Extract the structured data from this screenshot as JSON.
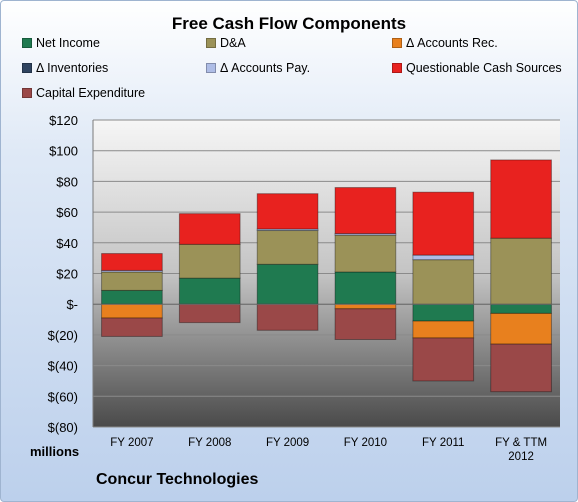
{
  "chart_data": {
    "type": "bar",
    "stacked": true,
    "title": "Free Cash Flow Components",
    "unit_label": "millions",
    "footer": "Concur Technologies",
    "categories": [
      "FY 2007",
      "FY 2008",
      "FY 2009",
      "FY 2010",
      "FY 2011",
      "FY & TTM 2012"
    ],
    "ylim": [
      -80,
      120
    ],
    "yticks": [
      120,
      100,
      80,
      60,
      40,
      20,
      0,
      -20,
      -40,
      -60,
      -80
    ],
    "ytick_labels": [
      "$120",
      "$100",
      "$80",
      "$60",
      "$40",
      "$20",
      "$-",
      "$(20)",
      "$(40)",
      "$(60)",
      "$(80)"
    ],
    "legend_position": "top",
    "series": [
      {
        "name": "Net Income",
        "color": "#1f7a50",
        "values": [
          9,
          17,
          26,
          21,
          -11,
          -6
        ]
      },
      {
        "name": "D&A",
        "color": "#9b9258",
        "values": [
          12,
          22,
          22,
          24,
          29,
          43
        ]
      },
      {
        "name": "Δ Accounts Rec.",
        "color": "#e8801e",
        "values": [
          -9,
          0,
          0,
          -3,
          -11,
          -20
        ]
      },
      {
        "name": "Δ Inventories",
        "color": "#2f4460",
        "values": [
          0,
          0,
          0,
          0,
          0,
          0
        ]
      },
      {
        "name": "Δ Accounts Pay.",
        "color": "#aebde6",
        "values": [
          1,
          0,
          1,
          1,
          3,
          0
        ]
      },
      {
        "name": "Questionable Cash Sources",
        "color": "#e8221f",
        "values": [
          11,
          20,
          23,
          30,
          41,
          51
        ]
      },
      {
        "name": "Capital Expenditure",
        "color": "#9a4848",
        "values": [
          -12,
          -12,
          -17,
          -20,
          -28,
          -31
        ]
      }
    ]
  }
}
